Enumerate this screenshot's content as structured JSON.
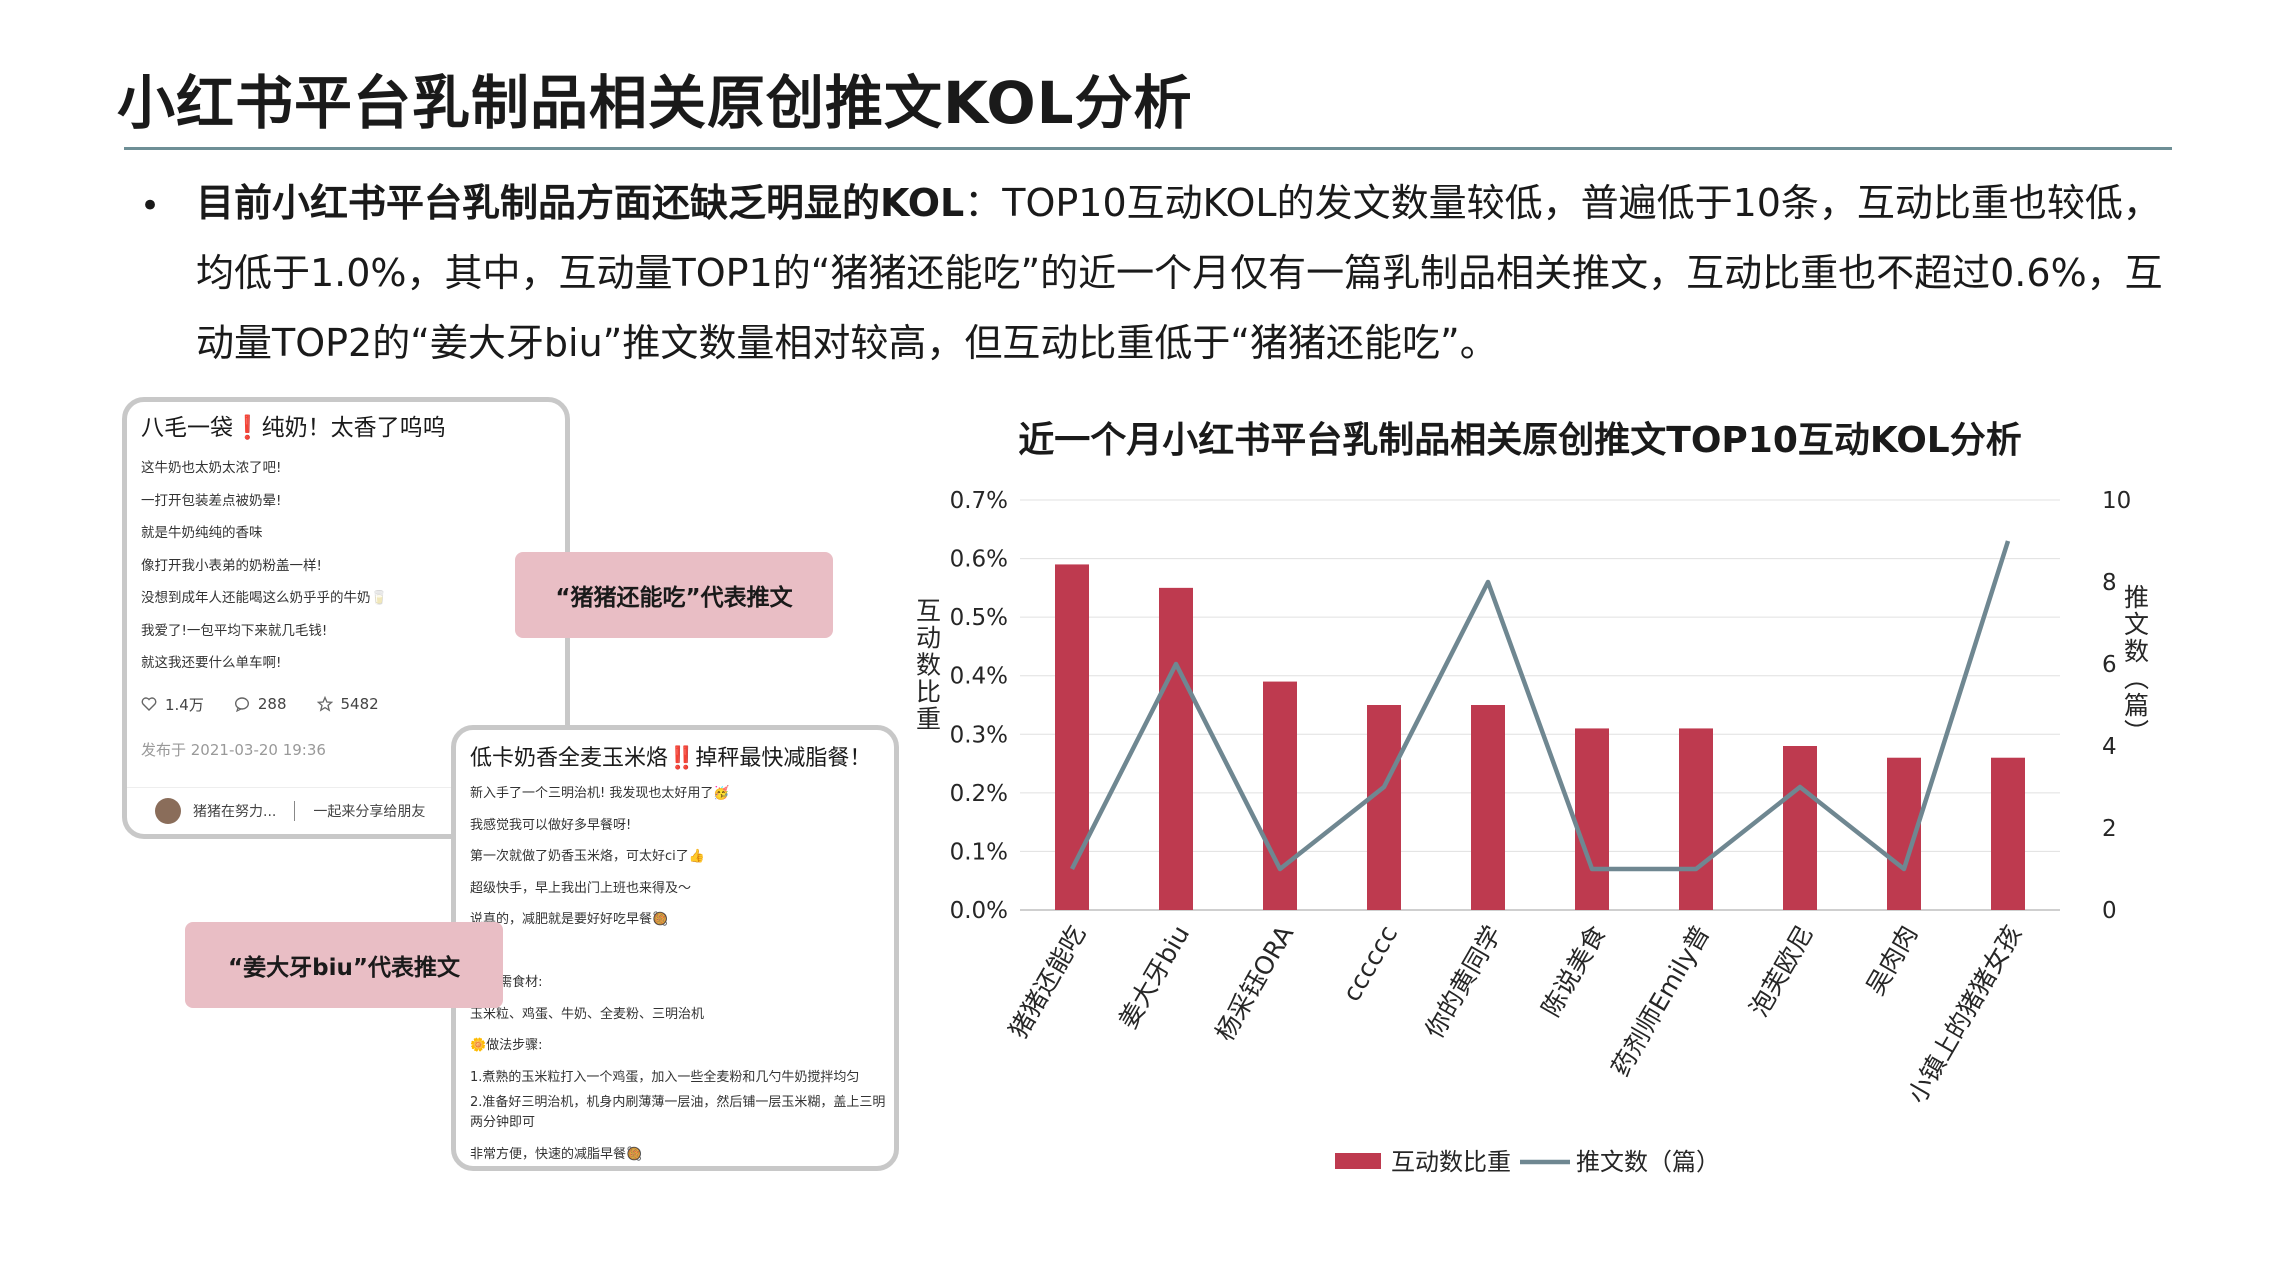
{
  "page": {
    "title": "小红书平台乳制品相关原创推文KOL分析",
    "bullet_bold": "目前小红书平台乳制品方面还缺乏明显的KOL",
    "bullet_rest": "：TOP10互动KOL的发文数量较低，普遍低于10条，互动比重也较低，均低于1.0%，其中，互动量TOP1的“猪猪还能吃”的近一个月仅有一篇乳制品相关推文，互动比重也不超过0.6%，互动量TOP2的“姜大牙biu”推文数量相对较高，但互动比重低于“猪猪还能吃”。"
  },
  "card1": {
    "title": "八毛一袋❗纯奶！太香了呜呜",
    "lines": [
      "这牛奶也太奶太浓了吧!",
      "一打开包装差点被奶晕!",
      "就是牛奶纯纯的香味",
      "像打开我小表弟的奶粉盖一样!",
      "没想到成年人还能喝这么奶乎乎的牛奶🥛",
      "我爱了!一包平均下来就几毛钱!",
      "就这我还要什么单车啊!"
    ],
    "likes": "1.4万",
    "comments": "288",
    "stars": "5482",
    "date": "发布于 2021-03-20 19:36",
    "author": "猪猪在努力...",
    "share": "一起来分享给朋友"
  },
  "card2": {
    "title": "低卡奶香全麦玉米烙‼️掉秤最快减脂餐！",
    "lines": [
      "新入手了一个三明治机! 我发现也太好用了🥳",
      "我感觉我可以做好多早餐呀!",
      "第一次就做了奶香玉米烙，可太好ci了👍",
      "超级快手，早上我出门上班也来得及～",
      "说真的，减肥就是要好好吃早餐🥘",
      "",
      "🥜所需食材:",
      "玉米粒、鸡蛋、牛奶、全麦粉、三明治机",
      "🌼做法步骤:",
      "1.煮熟的玉米粒打入一个鸡蛋，加入一些全麦粉和几勺牛奶搅拌均匀",
      "2.准备好三明治机，机身内刷薄薄一层油，然后铺一层玉米糊，盖上三明",
      "两分钟即可",
      "非常方便，快速的减脂早餐🥘"
    ]
  },
  "tags": {
    "tag1": "“猪猪还能吃”代表推文",
    "tag2": "“姜大牙biu”代表推文"
  },
  "chart_data": {
    "type": "bar",
    "title": "近一个月小红书平台乳制品相关原创推文TOP10互动KOL分析",
    "categories": [
      "猪猪还能吃",
      "姜大牙biu",
      "杨采钰ORA",
      "cccccc",
      "你的黄同学",
      "陈说美食",
      "药剂师Emily普",
      "泡芙欧尼",
      "吴肉肉",
      "小镇上的猪猪女孩"
    ],
    "series": [
      {
        "name": "互动数比重",
        "type": "bar",
        "axis": "left",
        "color": "#be3a4f",
        "values": [
          0.59,
          0.55,
          0.39,
          0.35,
          0.35,
          0.31,
          0.31,
          0.28,
          0.26,
          0.26
        ]
      },
      {
        "name": "推文数（篇）",
        "type": "line",
        "axis": "right",
        "color": "#6f8791",
        "values": [
          1,
          6,
          1,
          3,
          8,
          1,
          1,
          3,
          1,
          9
        ]
      }
    ],
    "ylabel": "互动数比重",
    "y2label": "推文数（篇）",
    "ylim": [
      0,
      0.7
    ],
    "yticks": [
      "0.0%",
      "0.1%",
      "0.2%",
      "0.3%",
      "0.4%",
      "0.5%",
      "0.6%",
      "0.7%"
    ],
    "y2lim": [
      0,
      10
    ],
    "y2ticks": [
      "0",
      "2",
      "4",
      "6",
      "8",
      "10"
    ],
    "grid": true,
    "legend_position": "bottom"
  }
}
